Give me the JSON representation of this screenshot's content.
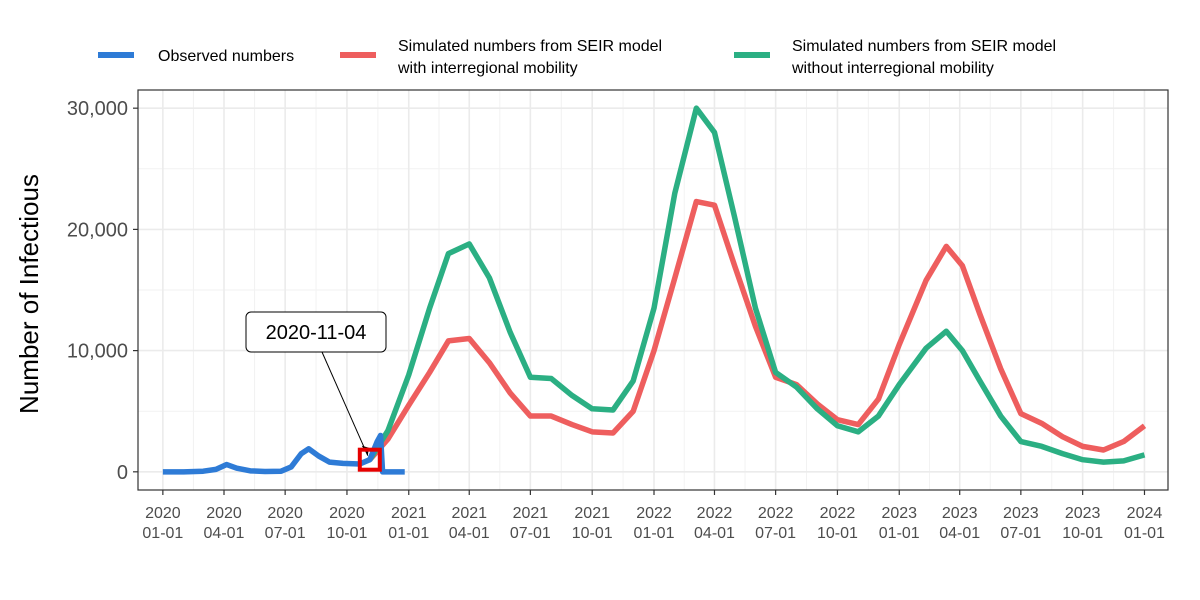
{
  "chart_data": {
    "type": "line",
    "title": "",
    "xlabel": "",
    "ylabel": "Number of Infectious",
    "x_range": [
      "2019-11-25",
      "2024-02-05"
    ],
    "ylim": [
      -1500,
      31500
    ],
    "grid": true,
    "legend_position": "top",
    "x_ticks": [
      {
        "date": "2020-01-01",
        "year": "2020",
        "md": "01-01"
      },
      {
        "date": "2020-04-01",
        "year": "2020",
        "md": "04-01"
      },
      {
        "date": "2020-07-01",
        "year": "2020",
        "md": "07-01"
      },
      {
        "date": "2020-10-01",
        "year": "2020",
        "md": "10-01"
      },
      {
        "date": "2021-01-01",
        "year": "2021",
        "md": "01-01"
      },
      {
        "date": "2021-04-01",
        "year": "2021",
        "md": "04-01"
      },
      {
        "date": "2021-07-01",
        "year": "2021",
        "md": "07-01"
      },
      {
        "date": "2021-10-01",
        "year": "2021",
        "md": "10-01"
      },
      {
        "date": "2022-01-01",
        "year": "2022",
        "md": "01-01"
      },
      {
        "date": "2022-04-01",
        "year": "2022",
        "md": "04-01"
      },
      {
        "date": "2022-07-01",
        "year": "2022",
        "md": "07-01"
      },
      {
        "date": "2022-10-01",
        "year": "2022",
        "md": "10-01"
      },
      {
        "date": "2023-01-01",
        "year": "2023",
        "md": "01-01"
      },
      {
        "date": "2023-04-01",
        "year": "2023",
        "md": "04-01"
      },
      {
        "date": "2023-07-01",
        "year": "2023",
        "md": "07-01"
      },
      {
        "date": "2023-10-01",
        "year": "2023",
        "md": "10-01"
      },
      {
        "date": "2024-01-01",
        "year": "2024",
        "md": "01-01"
      }
    ],
    "y_ticks": [
      {
        "value": 0,
        "label": "0"
      },
      {
        "value": 10000,
        "label": "10,000"
      },
      {
        "value": 20000,
        "label": "20,000"
      },
      {
        "value": 30000,
        "label": "30,000"
      }
    ],
    "series": [
      {
        "name": "Observed numbers",
        "legend_line1": "Observed numbers",
        "legend_line2": "",
        "color": "#2E7BD6",
        "points": [
          [
            "2020-01-01",
            0
          ],
          [
            "2020-02-01",
            0
          ],
          [
            "2020-03-01",
            50
          ],
          [
            "2020-03-20",
            200
          ],
          [
            "2020-04-05",
            600
          ],
          [
            "2020-04-20",
            300
          ],
          [
            "2020-05-10",
            80
          ],
          [
            "2020-06-01",
            30
          ],
          [
            "2020-06-25",
            50
          ],
          [
            "2020-07-10",
            400
          ],
          [
            "2020-07-25",
            1500
          ],
          [
            "2020-08-05",
            1900
          ],
          [
            "2020-08-20",
            1300
          ],
          [
            "2020-09-05",
            800
          ],
          [
            "2020-09-25",
            700
          ],
          [
            "2020-10-20",
            650
          ],
          [
            "2020-11-04",
            1000
          ],
          [
            "2020-11-15",
            2500
          ],
          [
            "2020-11-20",
            3000
          ],
          [
            "2020-11-23",
            0
          ],
          [
            "2020-12-26",
            0
          ]
        ]
      },
      {
        "name": "Simulated numbers from SEIR model with interregional mobility",
        "legend_line1": "Simulated numbers from SEIR model",
        "legend_line2": "with interregional mobility",
        "color": "#EE5E5E",
        "points": [
          [
            "2020-11-04",
            1000
          ],
          [
            "2020-12-01",
            2700
          ],
          [
            "2021-01-01",
            5500
          ],
          [
            "2021-02-01",
            8200
          ],
          [
            "2021-03-01",
            10800
          ],
          [
            "2021-04-01",
            11000
          ],
          [
            "2021-05-01",
            9000
          ],
          [
            "2021-06-01",
            6500
          ],
          [
            "2021-07-01",
            4600
          ],
          [
            "2021-08-01",
            4600
          ],
          [
            "2021-09-01",
            3900
          ],
          [
            "2021-10-01",
            3300
          ],
          [
            "2021-11-01",
            3200
          ],
          [
            "2021-12-01",
            5000
          ],
          [
            "2022-01-01",
            10000
          ],
          [
            "2022-02-01",
            16000
          ],
          [
            "2022-03-05",
            22300
          ],
          [
            "2022-04-01",
            22000
          ],
          [
            "2022-05-01",
            17000
          ],
          [
            "2022-06-01",
            12000
          ],
          [
            "2022-07-01",
            7800
          ],
          [
            "2022-08-01",
            7200
          ],
          [
            "2022-09-01",
            5600
          ],
          [
            "2022-10-01",
            4300
          ],
          [
            "2022-11-01",
            3900
          ],
          [
            "2022-12-01",
            6000
          ],
          [
            "2023-01-01",
            10500
          ],
          [
            "2023-02-10",
            15800
          ],
          [
            "2023-03-12",
            18600
          ],
          [
            "2023-04-05",
            17000
          ],
          [
            "2023-05-01",
            13000
          ],
          [
            "2023-06-01",
            8500
          ],
          [
            "2023-07-01",
            4800
          ],
          [
            "2023-08-01",
            4000
          ],
          [
            "2023-09-01",
            2900
          ],
          [
            "2023-10-01",
            2100
          ],
          [
            "2023-11-01",
            1800
          ],
          [
            "2023-12-01",
            2500
          ],
          [
            "2024-01-01",
            3800
          ]
        ]
      },
      {
        "name": "Simulated numbers from SEIR model without interregional mobility",
        "legend_line1": "Simulated numbers from SEIR model",
        "legend_line2": "without interregional mobility",
        "color": "#2BAF83",
        "points": [
          [
            "2020-11-04",
            1000
          ],
          [
            "2020-12-01",
            3400
          ],
          [
            "2021-01-01",
            8000
          ],
          [
            "2021-02-01",
            13500
          ],
          [
            "2021-03-01",
            18000
          ],
          [
            "2021-04-01",
            18800
          ],
          [
            "2021-05-01",
            16000
          ],
          [
            "2021-06-01",
            11500
          ],
          [
            "2021-07-01",
            7800
          ],
          [
            "2021-08-01",
            7700
          ],
          [
            "2021-09-01",
            6300
          ],
          [
            "2021-10-01",
            5200
          ],
          [
            "2021-11-01",
            5100
          ],
          [
            "2021-12-01",
            7500
          ],
          [
            "2022-01-01",
            13500
          ],
          [
            "2022-02-01",
            23000
          ],
          [
            "2022-03-05",
            30000
          ],
          [
            "2022-04-01",
            28000
          ],
          [
            "2022-05-01",
            21000
          ],
          [
            "2022-06-01",
            13500
          ],
          [
            "2022-07-01",
            8200
          ],
          [
            "2022-08-01",
            7000
          ],
          [
            "2022-09-01",
            5200
          ],
          [
            "2022-10-01",
            3800
          ],
          [
            "2022-11-01",
            3300
          ],
          [
            "2022-12-01",
            4600
          ],
          [
            "2023-01-01",
            7200
          ],
          [
            "2023-02-10",
            10200
          ],
          [
            "2023-03-12",
            11600
          ],
          [
            "2023-04-05",
            10000
          ],
          [
            "2023-05-01",
            7500
          ],
          [
            "2023-06-01",
            4600
          ],
          [
            "2023-07-01",
            2500
          ],
          [
            "2023-08-01",
            2100
          ],
          [
            "2023-09-01",
            1500
          ],
          [
            "2023-10-01",
            1000
          ],
          [
            "2023-11-01",
            800
          ],
          [
            "2023-12-01",
            900
          ],
          [
            "2024-01-01",
            1400
          ]
        ]
      }
    ],
    "annotation": {
      "label": "2020-11-04",
      "date": "2020-11-04",
      "value": 1000,
      "marker_color": "#E60000"
    }
  }
}
